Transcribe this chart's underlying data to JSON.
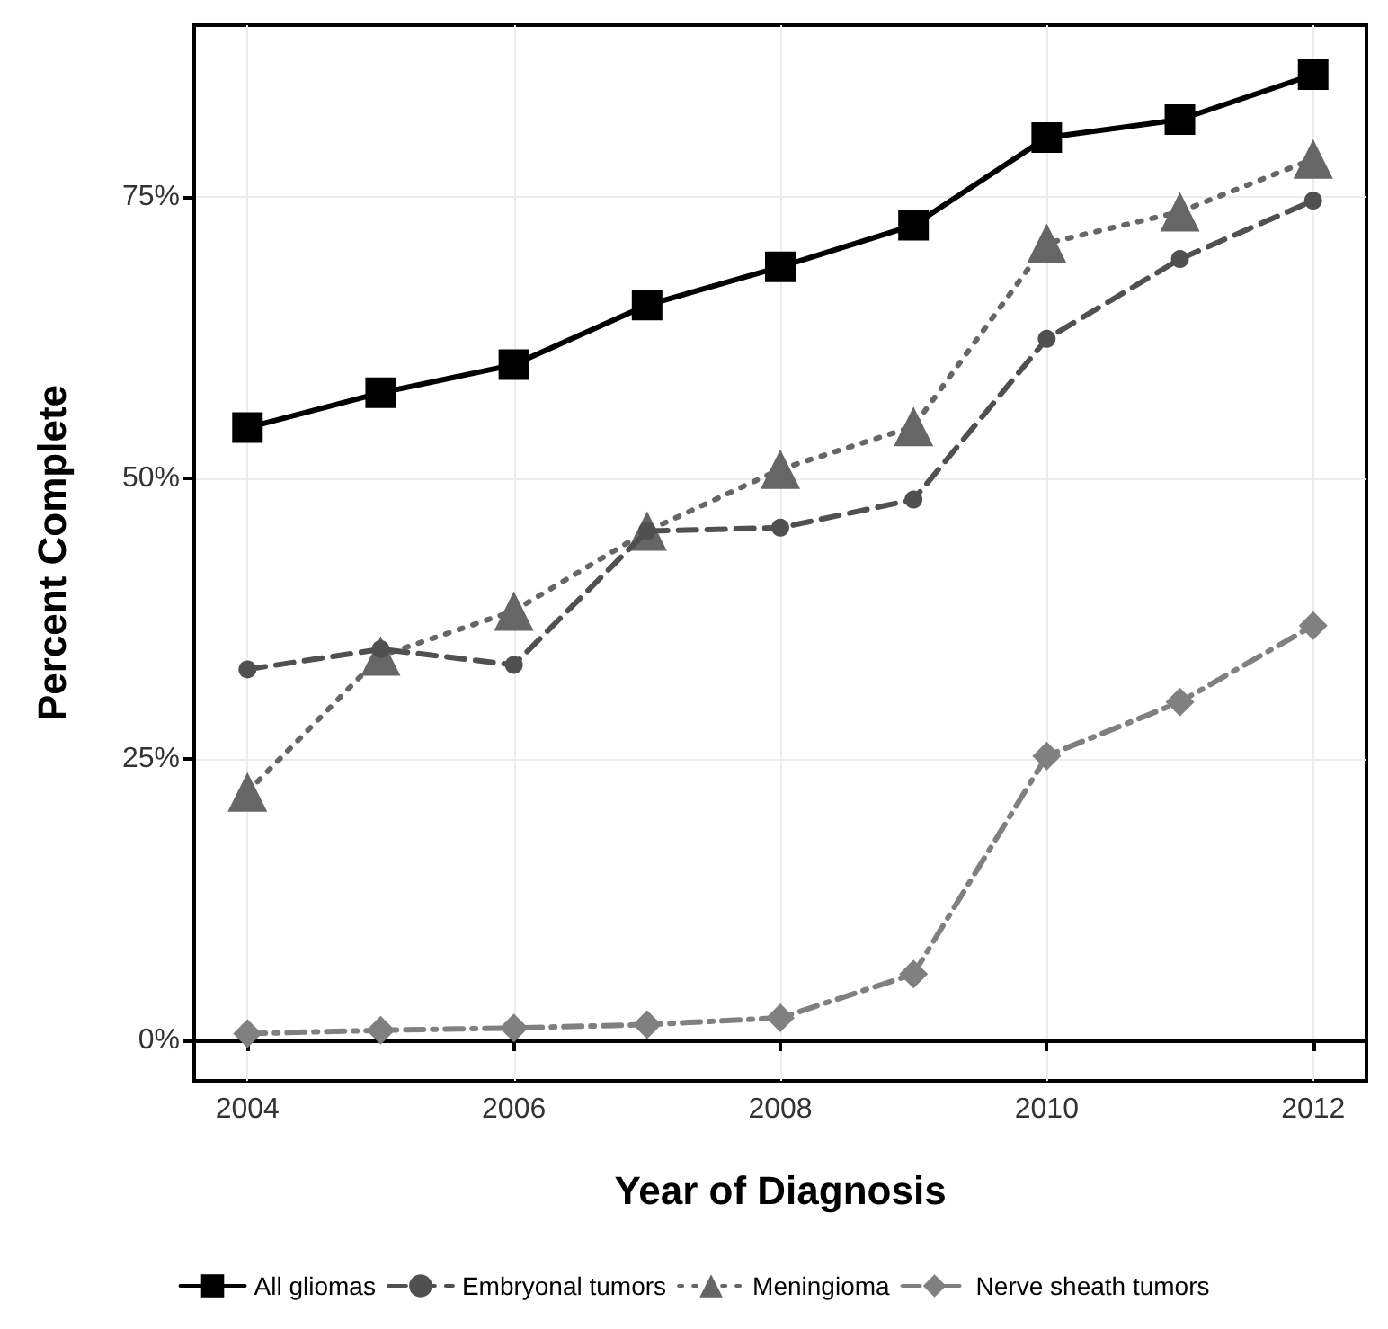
{
  "chart_data": {
    "type": "line",
    "xlabel": "Year of Diagnosis",
    "ylabel": "Percent Complete",
    "x": [
      2004,
      2005,
      2006,
      2007,
      2008,
      2009,
      2010,
      2011,
      2012
    ],
    "xlim": [
      2003.6,
      2012.4
    ],
    "xticks": [
      2004,
      2006,
      2008,
      2010,
      2012
    ],
    "ylim": [
      -3.6,
      90.3
    ],
    "yticks": [
      {
        "value": 0,
        "label": "0%"
      },
      {
        "value": 25,
        "label": "25%"
      },
      {
        "value": 50,
        "label": "50%"
      },
      {
        "value": 75,
        "label": "75%"
      }
    ],
    "grid": true,
    "legend": "bottom",
    "series": [
      {
        "name": "All gliomas",
        "color": "#000000",
        "marker": "square",
        "line_style": "solid",
        "values": [
          54.5,
          57.6,
          60.1,
          65.4,
          68.8,
          72.5,
          80.3,
          81.9,
          85.9
        ]
      },
      {
        "name": "Embryonal tumors",
        "color": "#505050",
        "marker": "circle",
        "line_style": "dashed",
        "values": [
          33.0,
          34.8,
          33.4,
          45.3,
          45.6,
          48.1,
          62.4,
          69.5,
          74.7
        ]
      },
      {
        "name": "Meningioma",
        "color": "#666666",
        "marker": "triangle",
        "line_style": "dotted",
        "values": [
          22.1,
          34.2,
          38.2,
          45.3,
          50.8,
          54.6,
          70.9,
          73.7,
          78.4
        ]
      },
      {
        "name": "Nerve sheath tumors",
        "color": "#808080",
        "marker": "diamond",
        "line_style": "dashdot",
        "values": [
          0.6,
          0.9,
          1.1,
          1.4,
          2.0,
          5.9,
          25.3,
          30.1,
          36.9
        ]
      }
    ]
  }
}
